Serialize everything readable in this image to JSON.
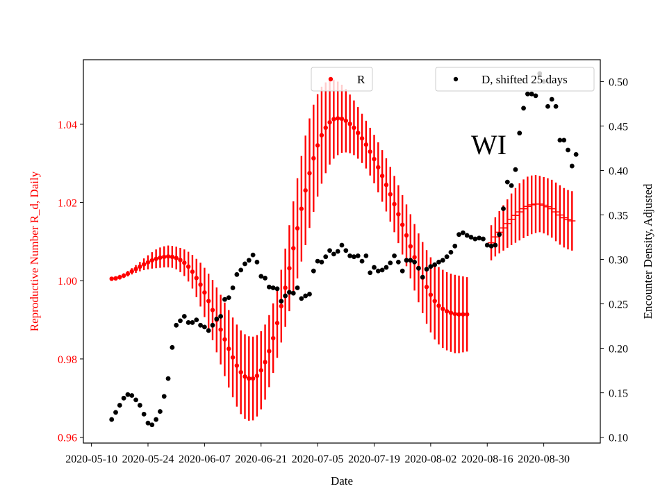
{
  "chart_data": {
    "type": "scatter",
    "annotation": "WI",
    "xlabel": "Date",
    "ylabel_left": "Reproductive Number R_d, Daily",
    "ylabel_right": "Encounter Density, Adjusted",
    "ylim_left": [
      0.9585,
      1.0565
    ],
    "ylim_right": [
      0.0935,
      0.5245
    ],
    "xlim": [
      "2020-05-08",
      "2020-09-13"
    ],
    "legend_placement": "top-center and top-right",
    "x_ticks": [
      "2020-05-10",
      "2020-05-24",
      "2020-06-07",
      "2020-06-21",
      "2020-07-05",
      "2020-07-19",
      "2020-08-02",
      "2020-08-16",
      "2020-08-30"
    ],
    "left_ticks": [
      "0.96",
      "0.98",
      "1.00",
      "1.02",
      "1.04"
    ],
    "right_ticks": [
      "0.10",
      "0.15",
      "0.20",
      "0.25",
      "0.30",
      "0.35",
      "0.40",
      "0.45",
      "0.50"
    ],
    "colors": {
      "R": "#ff0000",
      "D": "#000000"
    },
    "series": [
      {
        "name": "R",
        "axis": "left",
        "marker": "dot-with-errorbar",
        "start_date": "2020-05-15",
        "values": [
          1.0005,
          1.0006,
          1.0009,
          1.0013,
          1.0018,
          1.0024,
          1.003,
          1.0036,
          1.0042,
          1.0047,
          1.0052,
          1.0056,
          1.0059,
          1.0061,
          1.0062,
          1.0061,
          1.0058,
          1.0053,
          1.0046,
          1.0036,
          1.0023,
          1.0007,
          0.999,
          0.997,
          0.9948,
          0.9925,
          0.99,
          0.9875,
          0.985,
          0.9826,
          0.9804,
          0.9783,
          0.9766,
          0.9755,
          0.975,
          0.975,
          0.9757,
          0.9771,
          0.9792,
          0.982,
          0.9853,
          0.9892,
          0.9935,
          0.9982,
          1.0032,
          1.0083,
          1.0134,
          1.0184,
          1.0231,
          1.0275,
          1.0313,
          1.0346,
          1.0372,
          1.0391,
          1.0405,
          1.0413,
          1.0415,
          1.0414,
          1.0409,
          1.0401,
          1.0391,
          1.0378,
          1.0364,
          1.0348,
          1.033,
          1.0311,
          1.029,
          1.0268,
          1.0245,
          1.0221,
          1.0196,
          1.017,
          1.0143,
          1.0116,
          1.0088,
          1.006,
          1.0033,
          1.0008,
          0.9984,
          0.9964,
          0.9948,
          0.9936,
          0.9928,
          0.9922,
          0.9918,
          0.9915,
          0.9914,
          0.9914,
          0.9914
        ],
        "err": [
          0.0005,
          0.0005,
          0.0006,
          0.0006,
          0.0007,
          0.0008,
          0.001,
          0.0012,
          0.0015,
          0.0018,
          0.0021,
          0.0024,
          0.0026,
          0.0027,
          0.0028,
          0.0028,
          0.0029,
          0.0031,
          0.0034,
          0.0038,
          0.0043,
          0.0049,
          0.0056,
          0.0063,
          0.007,
          0.0077,
          0.0083,
          0.0089,
          0.0094,
          0.0099,
          0.0102,
          0.0105,
          0.0107,
          0.0108,
          0.0108,
          0.0107,
          0.0104,
          0.01,
          0.0096,
          0.0092,
          0.0089,
          0.0089,
          0.0093,
          0.01,
          0.011,
          0.012,
          0.0128,
          0.0135,
          0.014,
          0.014,
          0.0137,
          0.0131,
          0.0124,
          0.0116,
          0.0108,
          0.0101,
          0.0094,
          0.0087,
          0.0081,
          0.0075,
          0.007,
          0.0066,
          0.0063,
          0.0061,
          0.0061,
          0.0062,
          0.0064,
          0.0066,
          0.0068,
          0.007,
          0.0072,
          0.0074,
          0.0076,
          0.0079,
          0.0082,
          0.0085,
          0.0088,
          0.0091,
          0.0094,
          0.0096,
          0.0098,
          0.0099,
          0.01,
          0.01,
          0.01,
          0.01,
          0.0099,
          0.0097,
          0.0095
        ]
      },
      {
        "name": "",
        "axis": "left",
        "marker": "tick-with-errorbar",
        "start_date": "2020-08-17",
        "values": [
          1.0097,
          1.0112,
          1.0124,
          1.0135,
          1.0146,
          1.0157,
          1.0167,
          1.0176,
          1.0184,
          1.019,
          1.0194,
          1.0196,
          1.0196,
          1.0193,
          1.0189,
          1.0184,
          1.0176,
          1.0168,
          1.0161,
          1.0156,
          1.0153
        ],
        "err": [
          0.0045,
          0.005,
          0.0054,
          0.0058,
          0.0062,
          0.0066,
          0.007,
          0.0073,
          0.0075,
          0.0076,
          0.0075,
          0.0074,
          0.0072,
          0.0072,
          0.0073,
          0.0074,
          0.0075,
          0.0076,
          0.0076,
          0.0076,
          0.0076
        ]
      },
      {
        "name": "D, shifted 25 days",
        "axis": "right",
        "marker": "dot",
        "points": [
          [
            "2020-05-15",
            0.12
          ],
          [
            "2020-05-16",
            0.128
          ],
          [
            "2020-05-17",
            0.136
          ],
          [
            "2020-05-18",
            0.144
          ],
          [
            "2020-05-19",
            0.148
          ],
          [
            "2020-05-20",
            0.147
          ],
          [
            "2020-05-21",
            0.142
          ],
          [
            "2020-05-22",
            0.136
          ],
          [
            "2020-05-23",
            0.126
          ],
          [
            "2020-05-24",
            0.116
          ],
          [
            "2020-05-25",
            0.114
          ],
          [
            "2020-05-26",
            0.12
          ],
          [
            "2020-05-27",
            0.129
          ],
          [
            "2020-05-28",
            0.146
          ],
          [
            "2020-05-29",
            0.166
          ],
          [
            "2020-05-30",
            0.201
          ],
          [
            "2020-05-31",
            0.226
          ],
          [
            "2020-06-01",
            0.231
          ],
          [
            "2020-06-02",
            0.236
          ],
          [
            "2020-06-03",
            0.229
          ],
          [
            "2020-06-04",
            0.229
          ],
          [
            "2020-06-05",
            0.232
          ],
          [
            "2020-06-06",
            0.226
          ],
          [
            "2020-06-07",
            0.224
          ],
          [
            "2020-06-08",
            0.22
          ],
          [
            "2020-06-09",
            0.226
          ],
          [
            "2020-06-10",
            0.233
          ],
          [
            "2020-06-11",
            0.236
          ],
          [
            "2020-06-12",
            0.255
          ],
          [
            "2020-06-13",
            0.257
          ],
          [
            "2020-06-14",
            0.268
          ],
          [
            "2020-06-15",
            0.283
          ],
          [
            "2020-06-16",
            0.288
          ],
          [
            "2020-06-17",
            0.295
          ],
          [
            "2020-06-18",
            0.299
          ],
          [
            "2020-06-19",
            0.305
          ],
          [
            "2020-06-20",
            0.297
          ],
          [
            "2020-06-21",
            0.281
          ],
          [
            "2020-06-22",
            0.279
          ],
          [
            "2020-06-23",
            0.269
          ],
          [
            "2020-06-24",
            0.268
          ],
          [
            "2020-06-25",
            0.267
          ],
          [
            "2020-06-26",
            0.253
          ],
          [
            "2020-06-27",
            0.259
          ],
          [
            "2020-06-28",
            0.263
          ],
          [
            "2020-06-29",
            0.262
          ],
          [
            "2020-06-30",
            0.268
          ],
          [
            "2020-07-01",
            0.256
          ],
          [
            "2020-07-02",
            0.259
          ],
          [
            "2020-07-03",
            0.261
          ],
          [
            "2020-07-04",
            0.287
          ],
          [
            "2020-07-05",
            0.298
          ],
          [
            "2020-07-06",
            0.297
          ],
          [
            "2020-07-07",
            0.303
          ],
          [
            "2020-07-08",
            0.31
          ],
          [
            "2020-07-09",
            0.306
          ],
          [
            "2020-07-10",
            0.309
          ],
          [
            "2020-07-11",
            0.316
          ],
          [
            "2020-07-12",
            0.31
          ],
          [
            "2020-07-13",
            0.304
          ],
          [
            "2020-07-14",
            0.303
          ],
          [
            "2020-07-15",
            0.304
          ],
          [
            "2020-07-16",
            0.298
          ],
          [
            "2020-07-17",
            0.304
          ],
          [
            "2020-07-18",
            0.285
          ],
          [
            "2020-07-19",
            0.291
          ],
          [
            "2020-07-20",
            0.287
          ],
          [
            "2020-07-21",
            0.288
          ],
          [
            "2020-07-22",
            0.291
          ],
          [
            "2020-07-23",
            0.296
          ],
          [
            "2020-07-24",
            0.304
          ],
          [
            "2020-07-25",
            0.297
          ],
          [
            "2020-07-26",
            0.287
          ],
          [
            "2020-07-27",
            0.299
          ],
          [
            "2020-07-28",
            0.299
          ],
          [
            "2020-07-29",
            0.297
          ],
          [
            "2020-07-30",
            0.29
          ],
          [
            "2020-07-31",
            0.28
          ],
          [
            "2020-08-01",
            0.289
          ],
          [
            "2020-08-02",
            0.292
          ],
          [
            "2020-08-03",
            0.294
          ],
          [
            "2020-08-04",
            0.297
          ],
          [
            "2020-08-05",
            0.299
          ],
          [
            "2020-08-06",
            0.303
          ],
          [
            "2020-08-07",
            0.308
          ],
          [
            "2020-08-08",
            0.315
          ],
          [
            "2020-08-09",
            0.328
          ],
          [
            "2020-08-10",
            0.33
          ],
          [
            "2020-08-11",
            0.327
          ],
          [
            "2020-08-12",
            0.325
          ],
          [
            "2020-08-13",
            0.323
          ],
          [
            "2020-08-14",
            0.324
          ],
          [
            "2020-08-15",
            0.323
          ],
          [
            "2020-08-16",
            0.316
          ],
          [
            "2020-08-17",
            0.315
          ],
          [
            "2020-08-18",
            0.316
          ],
          [
            "2020-08-19",
            0.328
          ],
          [
            "2020-08-20",
            0.357
          ],
          [
            "2020-08-21",
            0.387
          ],
          [
            "2020-08-22",
            0.383
          ],
          [
            "2020-08-23",
            0.401
          ],
          [
            "2020-08-24",
            0.442
          ],
          [
            "2020-08-25",
            0.47
          ],
          [
            "2020-08-26",
            0.486
          ],
          [
            "2020-08-27",
            0.486
          ],
          [
            "2020-08-28",
            0.484
          ],
          [
            "2020-08-29",
            0.509
          ],
          [
            "2020-08-30",
            0.5
          ],
          [
            "2020-08-31",
            0.472
          ],
          [
            "2020-09-01",
            0.48
          ],
          [
            "2020-09-02",
            0.472
          ],
          [
            "2020-09-03",
            0.434
          ],
          [
            "2020-09-04",
            0.434
          ],
          [
            "2020-09-05",
            0.423
          ],
          [
            "2020-09-06",
            0.405
          ],
          [
            "2020-09-07",
            0.418
          ]
        ]
      }
    ]
  }
}
